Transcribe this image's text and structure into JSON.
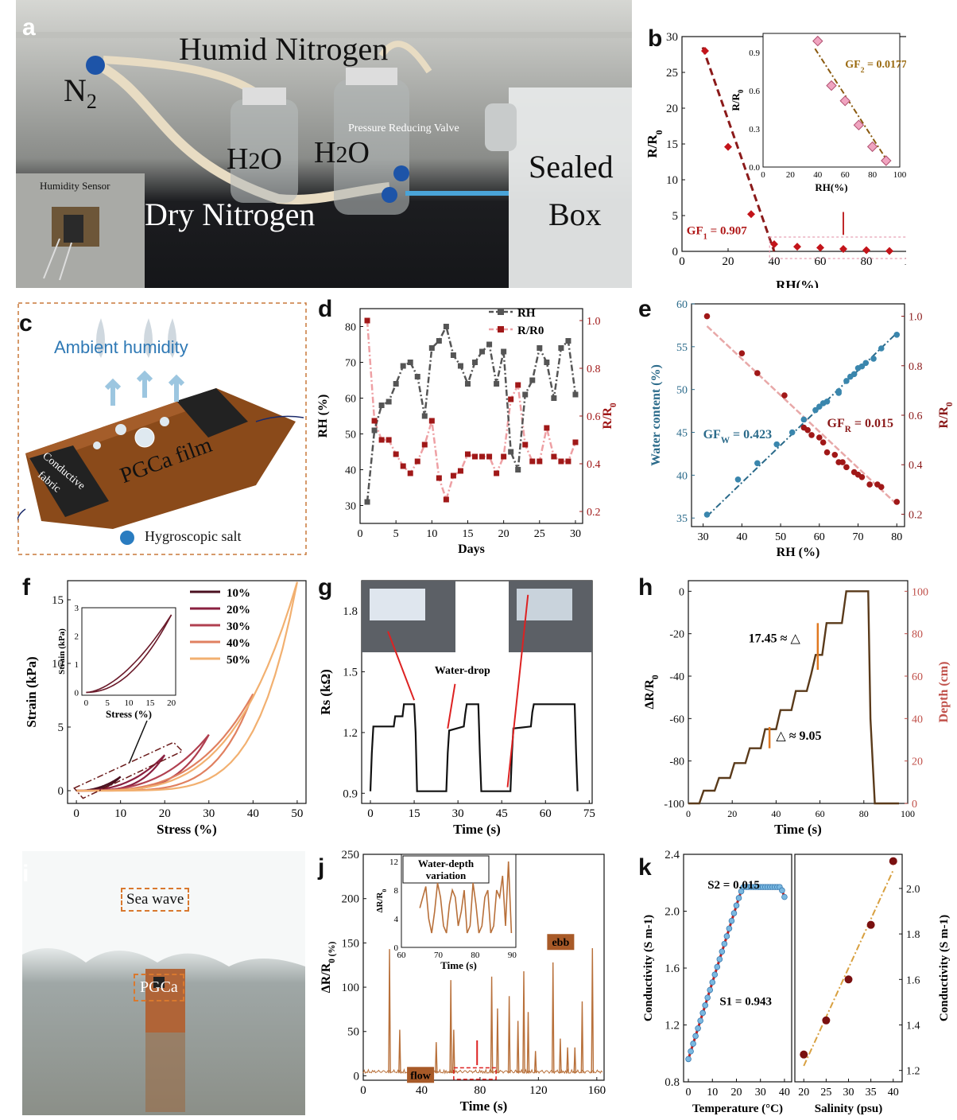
{
  "panels": {
    "a": {
      "letter": "a",
      "labels": {
        "humid_nitrogen": "Humid Nitrogen",
        "n2_main": "N",
        "n2_sub": "2",
        "h2o_1_pre": "H",
        "h2o_1_sub": "2",
        "h2o_1_post": "O",
        "h2o_2_pre": "H",
        "h2o_2_sub": "2",
        "h2o_2_post": "O",
        "pressure_valve": "Pressure Reducing Valve",
        "dry_nitrogen": "Dry Nitrogen",
        "sealed": "Sealed",
        "box": "Box",
        "humidity_sensor": "Humidity Sensor"
      }
    },
    "b": {
      "letter": "b"
    },
    "c": {
      "letter": "c",
      "labels": {
        "ambient": "Ambient humidity",
        "conductive1": "Conductive",
        "conductive2": "fabric",
        "film": "PGCa film",
        "salt": "Hygroscopic salt"
      }
    },
    "d": {
      "letter": "d"
    },
    "e": {
      "letter": "e"
    },
    "f": {
      "letter": "f"
    },
    "g": {
      "letter": "g"
    },
    "h": {
      "letter": "h"
    },
    "i": {
      "letter": "i",
      "labels": {
        "sea_wave": "Sea wave",
        "pgca": "PGCa"
      }
    },
    "j": {
      "letter": "j"
    },
    "k": {
      "letter": "k"
    }
  },
  "chart_data": [
    {
      "panel": "b",
      "type": "scatter",
      "xlabel": "RH(%)",
      "ylabel": "R/R0",
      "xlim": [
        0,
        100
      ],
      "ylim": [
        0,
        30
      ],
      "xticks": [
        "0",
        "20",
        "40",
        "60",
        "80",
        "100"
      ],
      "yticks": [
        "0",
        "5",
        "10",
        "15",
        "20",
        "25",
        "30"
      ],
      "points": [
        [
          10,
          28
        ],
        [
          20,
          14.6
        ],
        [
          30,
          5.2
        ],
        [
          40,
          1.0
        ],
        [
          50,
          0.65
        ],
        [
          60,
          0.52
        ],
        [
          70,
          0.33
        ],
        [
          80,
          0.16
        ],
        [
          90,
          0.05
        ]
      ],
      "annotations": {
        "gf1_pre": "GF",
        "gf1_sub": "1",
        "gf1_post": " = 0.907"
      },
      "inset": {
        "xlabel": "RH(%)",
        "ylabel": "R/R0",
        "xlim": [
          0,
          100
        ],
        "ylim": [
          0,
          1.0
        ],
        "xticks": [
          "0",
          "20",
          "40",
          "60",
          "80",
          "100"
        ],
        "yticks": [
          "0.0",
          "0.3",
          "0.6",
          "0.9"
        ],
        "points": [
          [
            40,
            0.99
          ],
          [
            50,
            0.64
          ],
          [
            60,
            0.52
          ],
          [
            70,
            0.33
          ],
          [
            80,
            0.16
          ],
          [
            90,
            0.05
          ]
        ],
        "gf2_pre": "GF",
        "gf2_sub": "2",
        "gf2_post": " = 0.0177"
      }
    },
    {
      "panel": "d",
      "type": "line",
      "xlabel": "Days",
      "ylabel_left": "RH (%)",
      "ylabel_right": "R/R0",
      "xlim": [
        0,
        31
      ],
      "ylim_left": [
        25,
        85
      ],
      "ylim_right": [
        0.15,
        1.05
      ],
      "xticks": [
        "0",
        "5",
        "10",
        "15",
        "20",
        "25",
        "30"
      ],
      "yticks_left": [
        "30",
        "40",
        "50",
        "60",
        "70",
        "80"
      ],
      "yticks_right": [
        "0.2",
        "0.4",
        "0.6",
        "0.8",
        "1.0"
      ],
      "series": [
        {
          "name": "RH",
          "x": [
            1,
            2,
            3,
            4,
            5,
            6,
            7,
            8,
            9,
            10,
            11,
            12,
            13,
            14,
            15,
            16,
            17,
            18,
            19,
            20,
            21,
            22,
            23,
            24,
            25,
            26,
            27,
            28,
            29,
            30
          ],
          "values": [
            31,
            51,
            58,
            59,
            64,
            69,
            70,
            66,
            55,
            74,
            76,
            80,
            72,
            69,
            64,
            70,
            73,
            75,
            64,
            73,
            45,
            40,
            61,
            65,
            74,
            70,
            60,
            74,
            76,
            61
          ]
        },
        {
          "name": "R/R0",
          "x": [
            1,
            2,
            3,
            4,
            5,
            6,
            7,
            8,
            9,
            10,
            11,
            12,
            13,
            14,
            15,
            16,
            17,
            18,
            19,
            20,
            21,
            22,
            23,
            24,
            25,
            26,
            27,
            28,
            29,
            30
          ],
          "values": [
            1.0,
            0.58,
            0.5,
            0.5,
            0.44,
            0.39,
            0.36,
            0.41,
            0.48,
            0.58,
            0.34,
            0.25,
            0.35,
            0.37,
            0.44,
            0.43,
            0.43,
            0.43,
            0.36,
            0.43,
            0.67,
            0.73,
            0.48,
            0.41,
            0.41,
            0.55,
            0.43,
            0.41,
            0.41,
            0.49
          ]
        }
      ]
    },
    {
      "panel": "e",
      "type": "scatter",
      "xlabel": "RH (%)",
      "ylabel_left": "Water content (%)",
      "ylabel_right": "R/R0",
      "xlim": [
        27,
        82
      ],
      "ylim_left": [
        34,
        60
      ],
      "ylim_right": [
        0.15,
        1.05
      ],
      "xticks": [
        "30",
        "40",
        "50",
        "60",
        "70",
        "80"
      ],
      "yticks_left": [
        "35",
        "40",
        "45",
        "50",
        "55",
        "60"
      ],
      "yticks_right": [
        "0.2",
        "0.4",
        "0.6",
        "0.8",
        "1.0"
      ],
      "series": [
        {
          "name": "GFW = 0.423",
          "x": [
            31,
            39,
            44,
            49,
            53,
            56,
            59,
            60,
            61,
            62,
            65,
            65,
            67,
            68,
            69,
            70,
            71,
            72,
            74,
            76,
            80
          ],
          "values": [
            35.4,
            39.5,
            41.4,
            43.6,
            45.0,
            46.5,
            47.6,
            48.0,
            48.4,
            48.6,
            49.6,
            49.8,
            51.0,
            51.5,
            51.8,
            52.5,
            52.7,
            53.1,
            53.6,
            54.8,
            56.4
          ]
        },
        {
          "name": "GFR = 0.015",
          "x": [
            31,
            40,
            44,
            51,
            56,
            57,
            58,
            60,
            61,
            62,
            64,
            65,
            66,
            67,
            69,
            70,
            71,
            73,
            75,
            76,
            80
          ],
          "values": [
            1.0,
            0.85,
            0.77,
            0.68,
            0.55,
            0.54,
            0.52,
            0.51,
            0.49,
            0.45,
            0.44,
            0.41,
            0.41,
            0.39,
            0.37,
            0.36,
            0.35,
            0.32,
            0.32,
            0.31,
            0.25
          ]
        }
      ],
      "gfw_pre": "GF",
      "gfw_sub": "W",
      "gfw_post": " = 0.423",
      "gfr_pre": "GF",
      "gfr_sub": "R",
      "gfr_post": " = 0.015"
    },
    {
      "panel": "f",
      "type": "line",
      "xlabel": "Stress (%)",
      "ylabel": "Strain (kPa)",
      "xlim": [
        -2,
        52
      ],
      "ylim": [
        -1,
        16.5
      ],
      "xticks": [
        "0",
        "10",
        "20",
        "30",
        "40",
        "50"
      ],
      "yticks": [
        "0",
        "5",
        "10",
        "15"
      ],
      "series": [
        {
          "name": "10%",
          "color": "#4a1020",
          "max_stress": 10,
          "max_strain": 1.1
        },
        {
          "name": "20%",
          "color": "#8a2040",
          "max_stress": 20,
          "max_strain": 2.8
        },
        {
          "name": "30%",
          "color": "#b04050",
          "max_stress": 30,
          "max_strain": 4.4
        },
        {
          "name": "40%",
          "color": "#e08060",
          "max_stress": 40,
          "max_strain": 7.6
        },
        {
          "name": "50%",
          "color": "#f2b070",
          "max_stress": 50,
          "max_strain": 16.4
        }
      ],
      "inset": {
        "xlabel": "Stress (%)",
        "ylabel": "Strain (kPa)",
        "xticks": [
          "0",
          "5",
          "10",
          "15",
          "20"
        ],
        "yticks": [
          "0",
          "1",
          "2",
          "3"
        ],
        "xlim": [
          -1,
          21
        ],
        "ylim": [
          -0.1,
          3
        ]
      }
    },
    {
      "panel": "g",
      "type": "line",
      "xlabel": "Time (s)",
      "ylabel": "Rs (kΩ)",
      "xlim": [
        -3,
        76
      ],
      "ylim": [
        0.85,
        1.95
      ],
      "xticks": [
        "0",
        "15",
        "30",
        "45",
        "60",
        "75"
      ],
      "yticks": [
        "0.9",
        "1.2",
        "1.5",
        "1.8"
      ],
      "x": [
        0,
        0.5,
        1,
        8,
        8.5,
        11,
        11.5,
        15,
        15.5,
        16,
        21,
        21.5,
        22,
        26,
        26.5,
        27,
        32,
        32.5,
        33,
        37,
        37.5,
        38,
        43,
        43.5,
        44,
        48,
        48.5,
        49,
        55,
        55.5,
        56,
        60,
        60.5,
        61,
        70,
        70.5,
        71
      ],
      "values": [
        0.91,
        1.1,
        1.23,
        1.23,
        1.28,
        1.28,
        1.34,
        1.34,
        1.2,
        0.91,
        0.91,
        0.91,
        0.91,
        0.91,
        1.1,
        1.21,
        1.23,
        1.29,
        1.34,
        1.34,
        1.1,
        0.91,
        0.91,
        0.91,
        0.91,
        0.91,
        1.1,
        1.22,
        1.23,
        1.3,
        1.34,
        1.34,
        1.34,
        1.34,
        1.34,
        1.1,
        0.91
      ],
      "annotation": "Water-drop"
    },
    {
      "panel": "h",
      "type": "line",
      "xlabel": "Time (s)",
      "ylabel_left": "ΔR/R0",
      "ylabel_right": "Depth (cm)",
      "xlim": [
        0,
        100
      ],
      "ylim_left": [
        -100,
        5
      ],
      "ylim_right": [
        0,
        105
      ],
      "xticks": [
        "0",
        "20",
        "40",
        "60",
        "80",
        "100"
      ],
      "yticks_left": [
        "-100",
        "-80",
        "-60",
        "-40",
        "-20",
        "0"
      ],
      "yticks_right": [
        "0",
        "20",
        "40",
        "60",
        "80",
        "100"
      ],
      "x": [
        0,
        5,
        7,
        12,
        14,
        19,
        21,
        26,
        28,
        33,
        35,
        40,
        42,
        47,
        49,
        54,
        56,
        58,
        61,
        63,
        65,
        70,
        72,
        82,
        83,
        85,
        96
      ],
      "values": [
        -100,
        -100,
        -94,
        -94,
        -88,
        -88,
        -81,
        -81,
        -74,
        -74,
        -65,
        -65,
        -56,
        -56,
        -47,
        -47,
        -39,
        -30,
        -30,
        -15,
        -15,
        -15,
        0,
        0,
        -60,
        -100,
        -100
      ],
      "ann_big": "17.45 ≈ △",
      "ann_small": "△ ≈ 9.05"
    },
    {
      "panel": "j",
      "type": "line",
      "xlabel": "Time (s)",
      "ylabel": "ΔR/R0 (%)",
      "xlim": [
        0,
        165
      ],
      "ylim": [
        -5,
        250
      ],
      "xticks": [
        "0",
        "40",
        "80",
        "120",
        "160"
      ],
      "yticks": [
        "0",
        "50",
        "100",
        "150",
        "200",
        "250"
      ],
      "spikes": [
        [
          18,
          143
        ],
        [
          25,
          52
        ],
        [
          50,
          38
        ],
        [
          60,
          108
        ],
        [
          62,
          52
        ],
        [
          88,
          112
        ],
        [
          92,
          76
        ],
        [
          100,
          90
        ],
        [
          106,
          62
        ],
        [
          110,
          118
        ],
        [
          113,
          72
        ],
        [
          118,
          28
        ],
        [
          130,
          128
        ],
        [
          135,
          42
        ],
        [
          140,
          32
        ],
        [
          145,
          32
        ],
        [
          150,
          84
        ],
        [
          157,
          144
        ]
      ],
      "labels": {
        "flow": "flow",
        "ebb": "ebb"
      },
      "inset": {
        "title1": "Water-depth",
        "title2": "variation",
        "xlabel": "Time (s)",
        "ylabel": "ΔR/R0",
        "xticks": [
          "60",
          "70",
          "80",
          "90"
        ],
        "yticks": [
          "0",
          "4",
          "8",
          "12"
        ],
        "xlim": [
          60,
          91
        ],
        "ylim": [
          0,
          13
        ]
      }
    },
    {
      "panel": "k",
      "type": "scatter",
      "left": {
        "xlabel": "Temperature (°C)",
        "ylabel": "Conductivity (S m-1)",
        "xlim": [
          -2,
          43
        ],
        "ylim": [
          0.8,
          2.4
        ],
        "xticks": [
          "0",
          "10",
          "20",
          "30",
          "40"
        ],
        "yticks": [
          "0.8",
          "1.2",
          "1.6",
          "2.0",
          "2.4"
        ],
        "s1": "S1 = 0.943",
        "s2": "S2 = 0.015"
      },
      "right": {
        "xlabel": "Salinity (psu)",
        "ylabel": "Conductivity (S m-1)",
        "xlim": [
          18,
          42
        ],
        "ylim": [
          1.15,
          2.15
        ],
        "xticks": [
          "20",
          "25",
          "30",
          "35",
          "40"
        ],
        "yticks": [
          "1.2",
          "1.4",
          "1.6",
          "1.8",
          "2.0"
        ],
        "points": [
          [
            20,
            1.27
          ],
          [
            25,
            1.42
          ],
          [
            30,
            1.6
          ],
          [
            35,
            1.84
          ],
          [
            40,
            2.12
          ]
        ]
      }
    }
  ]
}
